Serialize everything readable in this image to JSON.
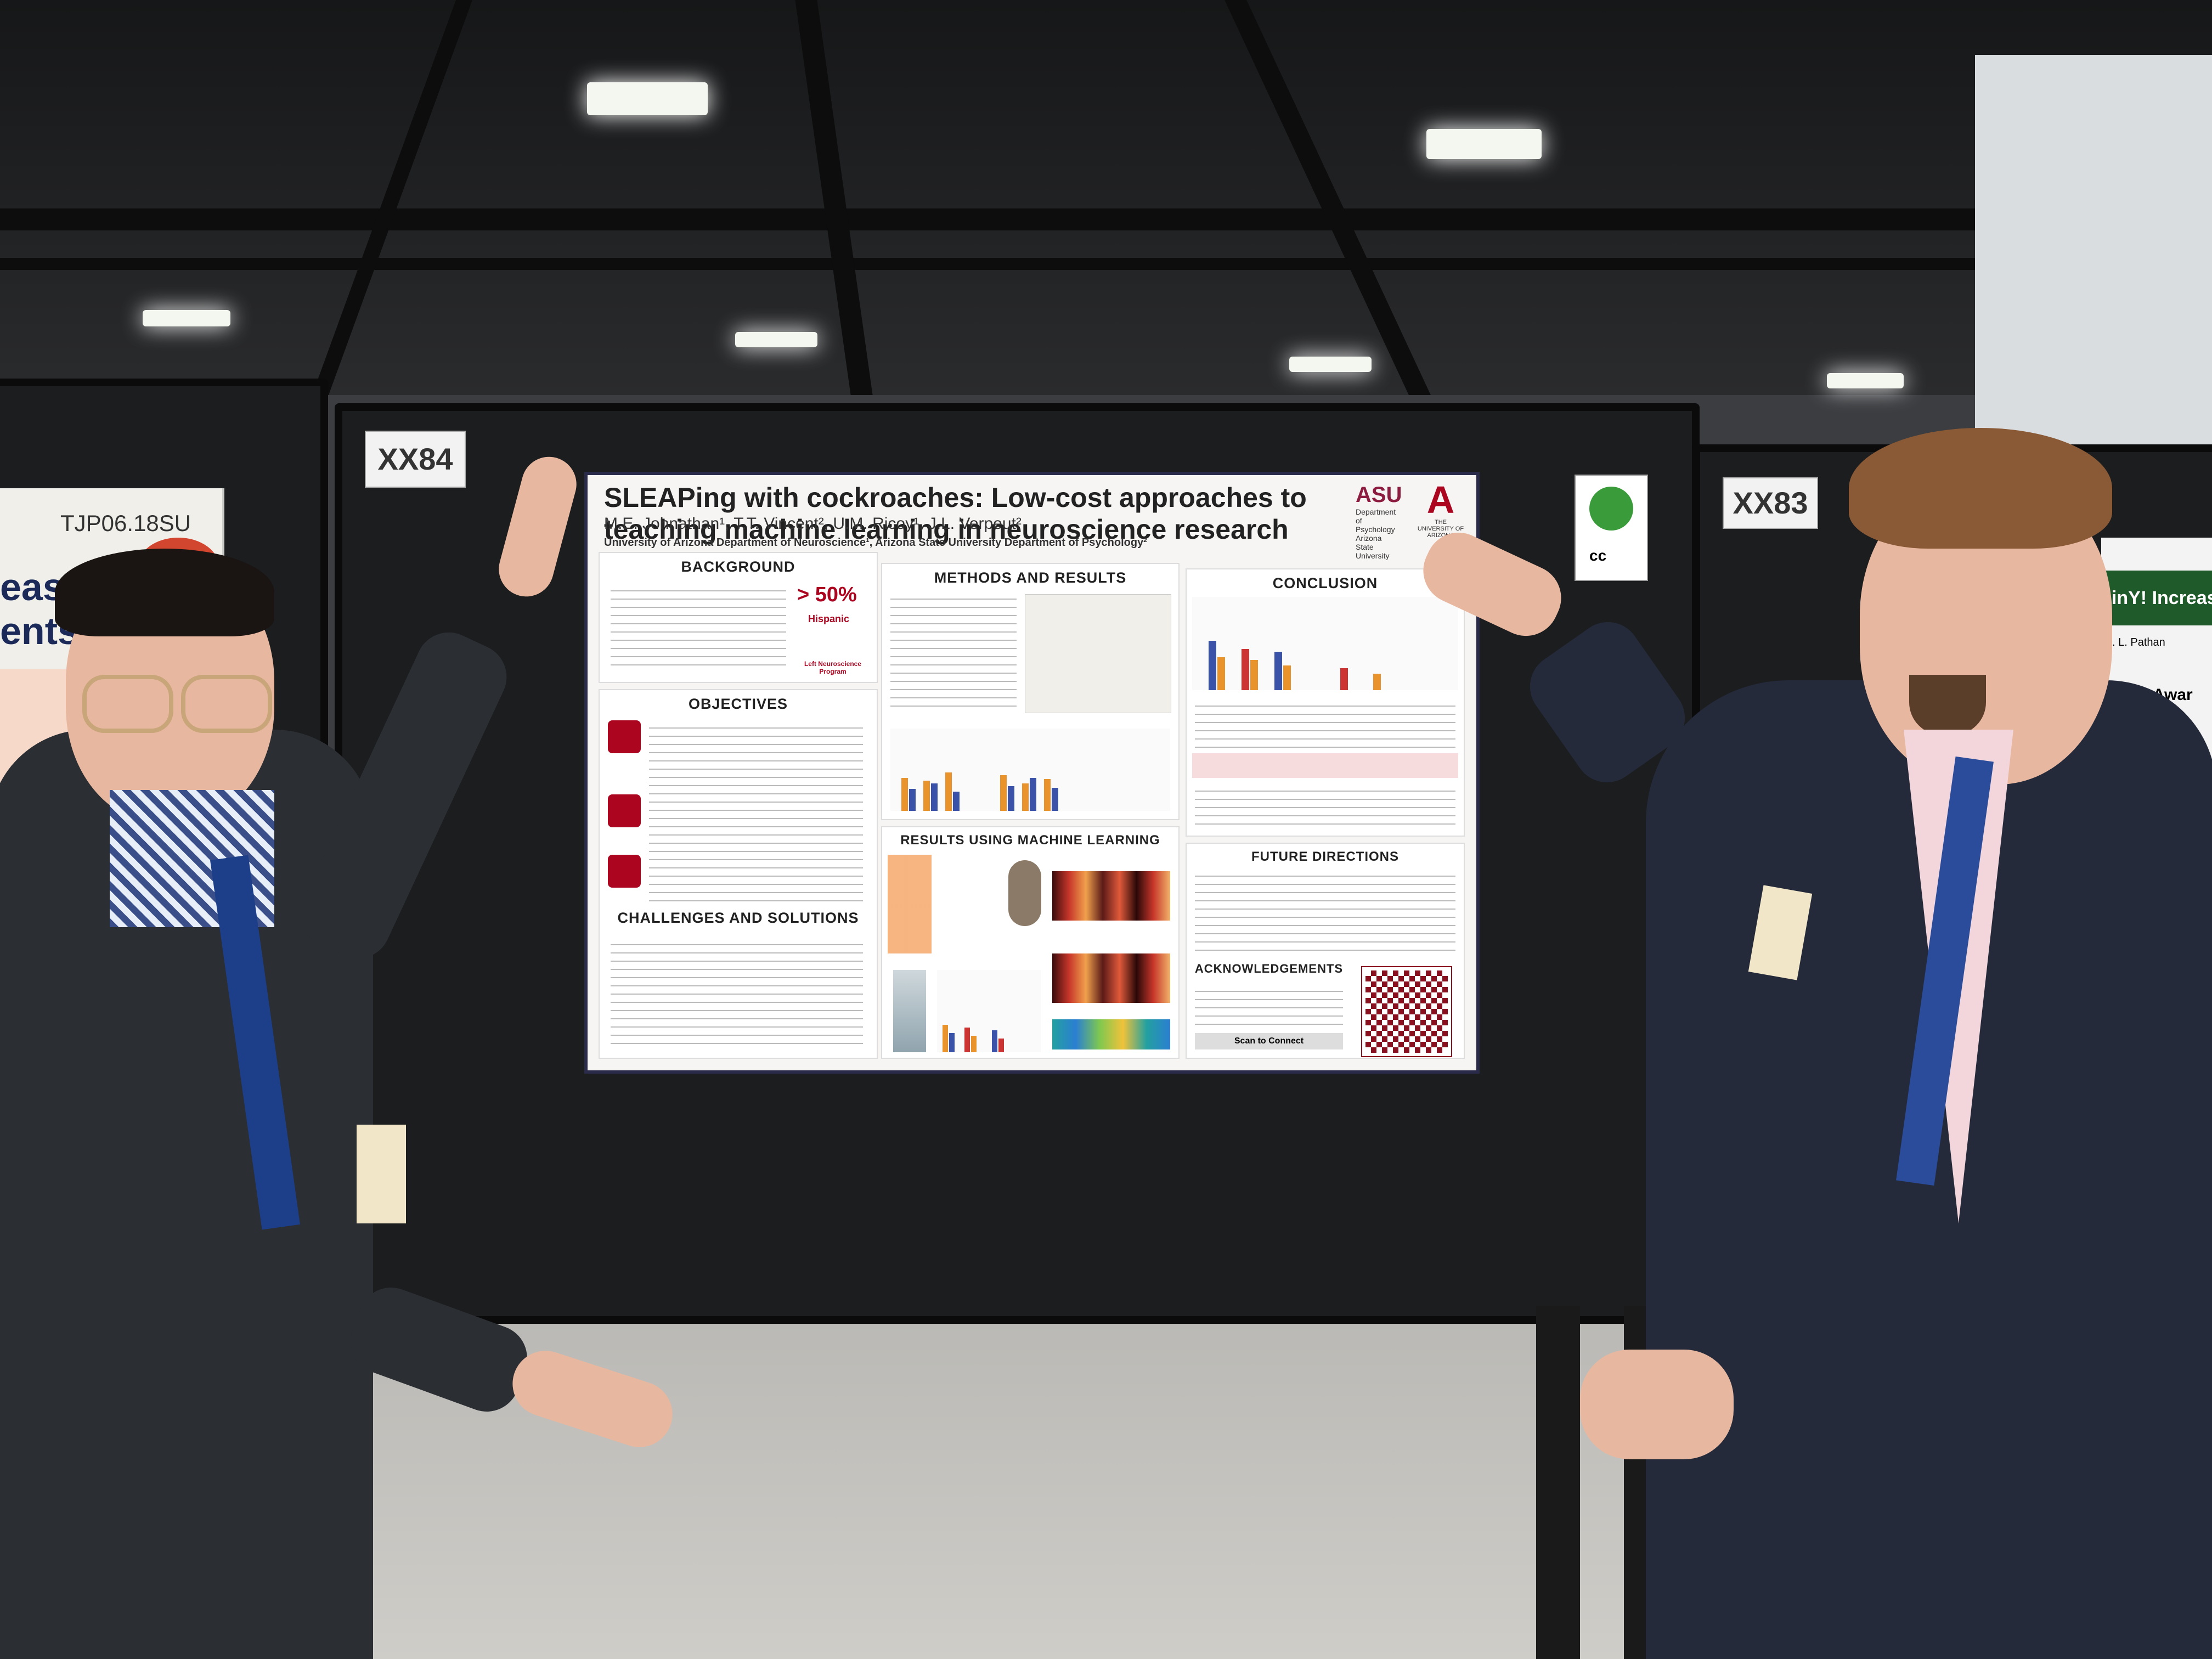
{
  "scene": {
    "left_board_tag": "TJP06.18SU",
    "left_board_text": [
      "ease:",
      "ents"
    ],
    "board_tags": [
      "XX84",
      "XX83"
    ],
    "right_board_text": [
      "ainY! Increasing",
      "J. L. Pathan",
      "Brain Awar"
    ],
    "cc_badge": "cc"
  },
  "poster": {
    "title": "SLEAPing with cockroaches: Low-cost approaches to teaching machine learning in neuroscience research",
    "authors": "M.E. Johnathan¹, T.T. Vincent², U.M. Ricoy¹, J.L. Verpeut²",
    "affiliations": "University of Arizona Department of Neuroscience¹, Arizona State University Department of Psychology²",
    "logo_asu": "ASU",
    "logo_asu_dept": "Department of Psychology",
    "logo_asu_univ": "Arizona State University",
    "logo_ua": "A",
    "logo_ua_name": "THE UNIVERSITY OF ARIZONA",
    "sections": {
      "background": "BACKGROUND",
      "background_stat": "> 50%",
      "background_stat_label": "Hispanic",
      "background_stat_sub": "Left Neuroscience Program",
      "objectives": "OBJECTIVES",
      "challenges": "CHALLENGES AND SOLUTIONS",
      "methods": "METHODS AND RESULTS",
      "results_ml": "RESULTS USING MACHINE LEARNING",
      "conclusion": "CONCLUSION",
      "future": "FUTURE DIRECTIONS",
      "acknowledgements": "ACKNOWLEDGEMENTS",
      "scan": "Scan to Connect"
    }
  }
}
